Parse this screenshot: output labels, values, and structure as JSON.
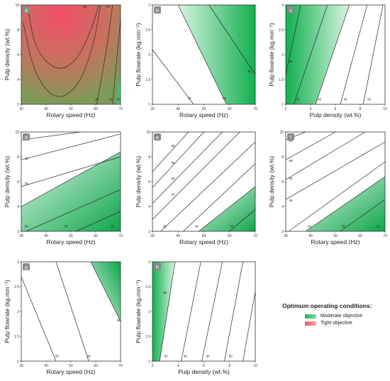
{
  "chart_data": [
    {
      "id": "a",
      "type": "contour",
      "xlabel": "Rotary speed (Hz)",
      "ylabel": "Pulp density (wt.%)",
      "xlim": [
        30,
        70
      ],
      "ylim": [
        2,
        10
      ],
      "xticks": [
        "30",
        "40",
        "50",
        "60",
        "70"
      ],
      "yticks": [
        "2",
        "4",
        "6",
        "8",
        "10"
      ],
      "fill": "tight",
      "contour_labels": [
        "50",
        "40",
        "30",
        "25",
        "50"
      ]
    },
    {
      "id": "b",
      "type": "contour",
      "xlabel": "Rotary speed (Hz)",
      "ylabel": "Pulp flowrate (kg.min⁻¹)",
      "xlim": [
        30,
        70
      ],
      "ylim": [
        1,
        3
      ],
      "xticks": [
        "30",
        "40",
        "50",
        "60",
        "70"
      ],
      "yticks": [
        "1",
        "1.5",
        "2",
        "2.5",
        "3"
      ],
      "fill": "moderate",
      "contour_labels": [
        "35",
        "35",
        "35"
      ]
    },
    {
      "id": "c",
      "type": "contour",
      "xlabel": "Pulp density (wt.%)",
      "ylabel": "Pulp flowrate (kg.min⁻¹)",
      "xlim": [
        2,
        10
      ],
      "ylim": [
        1,
        3
      ],
      "xticks": [
        "2",
        "4",
        "6",
        "8",
        "10"
      ],
      "yticks": [
        "1",
        "1.5",
        "2",
        "2.5",
        "3"
      ],
      "fill": "moderate",
      "contour_labels": [
        "30",
        "35",
        "40",
        "45",
        "50"
      ]
    },
    {
      "id": "d",
      "type": "contour",
      "xlabel": "Rotary speed (Hz)",
      "ylabel": "Pulp density (wt.%)",
      "xlim": [
        30,
        70
      ],
      "ylim": [
        2,
        10
      ],
      "xticks": [
        "30",
        "40",
        "50",
        "60",
        "70"
      ],
      "yticks": [
        "2",
        "4",
        "6",
        "8",
        "10"
      ],
      "fill": "moderate",
      "contour_labels": [
        "50",
        "45",
        "40",
        "35",
        "30",
        "25"
      ]
    },
    {
      "id": "e",
      "type": "contour",
      "xlabel": "Rotary speed (Hz)",
      "ylabel": "Pulp density (wt.%)",
      "xlim": [
        30,
        70
      ],
      "ylim": [
        2,
        10
      ],
      "xticks": [
        "30",
        "40",
        "50",
        "60",
        "70"
      ],
      "yticks": [
        "2",
        "4",
        "6",
        "8",
        "10"
      ],
      "fill": "moderate",
      "contour_labels": [
        "65",
        "60",
        "55",
        "50",
        "45",
        "40",
        "35"
      ]
    },
    {
      "id": "f",
      "type": "contour",
      "xlabel": "Rotary speed (Hz)",
      "ylabel": "Pulp density (wt.%)",
      "xlim": [
        30,
        70
      ],
      "ylim": [
        2,
        10
      ],
      "xticks": [
        "30",
        "40",
        "50",
        "60",
        "70"
      ],
      "yticks": [
        "2",
        "4",
        "6",
        "8",
        "10"
      ],
      "fill": "moderate",
      "contour_labels": [
        "60",
        "55",
        "50",
        "45",
        "40",
        "35",
        "30"
      ]
    },
    {
      "id": "g",
      "type": "contour",
      "xlabel": "Rotary speed (Hz)",
      "ylabel": "Pulp flowrate (kg.min⁻¹)",
      "xlim": [
        30,
        70
      ],
      "ylim": [
        1,
        3
      ],
      "xticks": [
        "30",
        "40",
        "50",
        "60",
        "70"
      ],
      "yticks": [
        "1",
        "1.5",
        "2",
        "2.5",
        "3"
      ],
      "fill": "moderate",
      "contour_labels": [
        "50",
        "45",
        "35"
      ]
    },
    {
      "id": "h",
      "type": "contour",
      "xlabel": "Pulp density (wt.%)",
      "ylabel": "Pulp flowrate (kg.min⁻¹)",
      "xlim": [
        2,
        10
      ],
      "ylim": [
        1,
        3
      ],
      "xticks": [
        "2",
        "4",
        "6",
        "8",
        "10"
      ],
      "yticks": [
        "1",
        "1.5",
        "2",
        "2.5",
        "3"
      ],
      "fill": "moderate",
      "contour_labels": [
        "35",
        "40",
        "45",
        "50",
        "55"
      ]
    }
  ],
  "legend": {
    "title": "Optimum operating conditions:",
    "items": [
      {
        "label": "Moderate objective",
        "color": "#19b45a"
      },
      {
        "label": "Tight objective",
        "color": "#ee5a6e"
      }
    ]
  }
}
